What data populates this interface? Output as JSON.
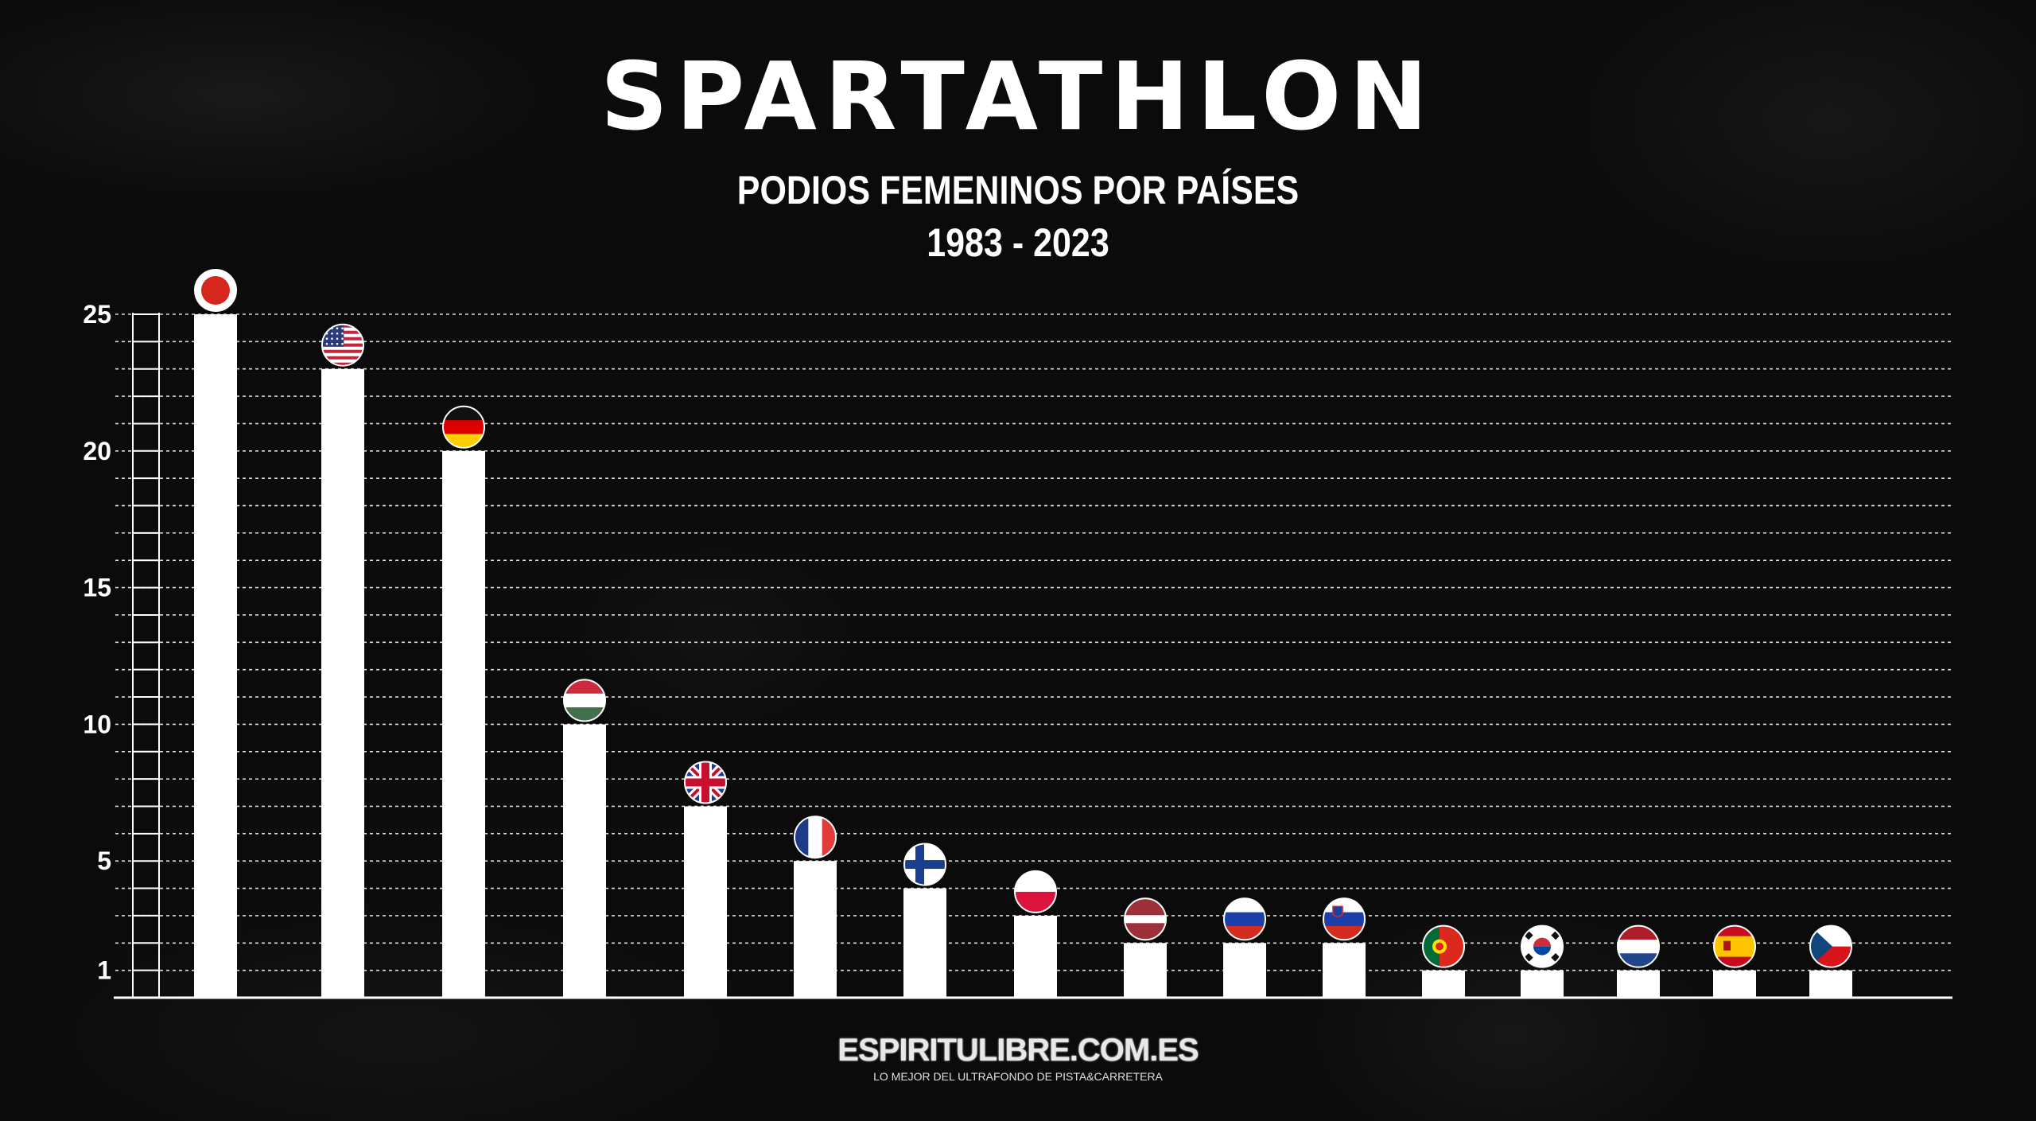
{
  "header": {
    "title": "SPARTATHLON",
    "subtitle": "PODIOS FEMENINOS POR PAÍSES",
    "years": "1983 - 2023"
  },
  "footer": {
    "logo": "ESPIRITULIBRE.COM.ES",
    "tagline": "LO MEJOR DEL ULTRAFONDO DE PISTA&CARRETERA"
  },
  "colors": {
    "background": "#0b0b0b",
    "bars": "#ffffff",
    "grid": "#ffffff",
    "text": "#ffffff"
  },
  "chart_data": {
    "type": "bar",
    "title": "PODIOS FEMENINOS POR PAÍSES",
    "xlabel": "",
    "ylabel": "",
    "ylim": [
      0,
      25
    ],
    "yticks": [
      1,
      5,
      10,
      15,
      20,
      25
    ],
    "grid": true,
    "categories": [
      "Japan",
      "USA",
      "Germany",
      "Hungary",
      "United Kingdom",
      "France",
      "Finland",
      "Poland",
      "Latvia",
      "Russia",
      "Slovenia",
      "Portugal",
      "South Korea",
      "Netherlands",
      "Spain",
      "Czech Republic"
    ],
    "category_icons": [
      "flag-japan-icon",
      "flag-usa-icon",
      "flag-germany-icon",
      "flag-hungary-icon",
      "flag-uk-icon",
      "flag-france-icon",
      "flag-finland-icon",
      "flag-poland-icon",
      "flag-latvia-icon",
      "flag-russia-icon",
      "flag-slovenia-icon",
      "flag-portugal-icon",
      "flag-south-korea-icon",
      "flag-netherlands-icon",
      "flag-spain-icon",
      "flag-czech-icon"
    ],
    "values": [
      25,
      23,
      20,
      10,
      7,
      5,
      4,
      3,
      2,
      2,
      2,
      1,
      1,
      1,
      1,
      1
    ]
  }
}
